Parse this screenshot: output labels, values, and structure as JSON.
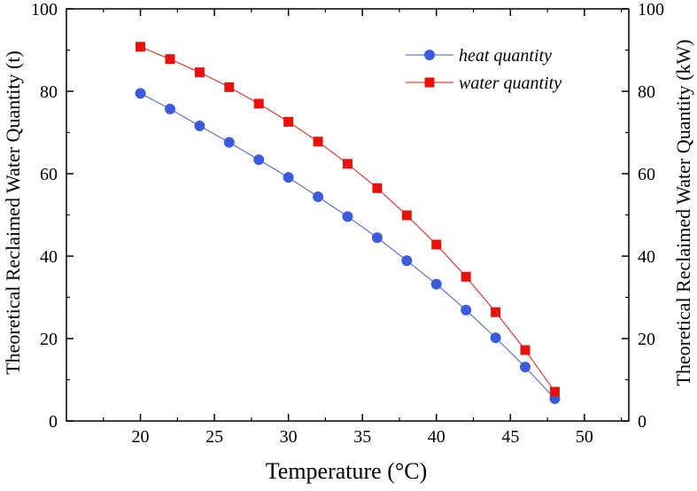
{
  "chart_data": {
    "type": "line",
    "title": "",
    "xlabel": "Temperature (°C)",
    "ylabel": "Theoretical Reclaimed Water Quantity (t)",
    "y2label": "Theoretical Reclaimed Water Quantity (kW)",
    "xlim": [
      15,
      53
    ],
    "ylim": [
      0,
      100
    ],
    "y2lim": [
      0,
      100
    ],
    "x_ticks": [
      20,
      25,
      30,
      35,
      40,
      45,
      50
    ],
    "y_ticks": [
      0,
      20,
      40,
      60,
      80,
      100
    ],
    "grid": false,
    "legend_position": "top-right",
    "x": [
      20,
      22,
      24,
      26,
      28,
      30,
      32,
      34,
      36,
      38,
      40,
      42,
      44,
      46,
      48
    ],
    "series": [
      {
        "name": "heat quantity",
        "color": "#3b5bdb",
        "marker": "circle",
        "values": [
          79.5,
          75.7,
          71.6,
          67.6,
          63.4,
          59.1,
          54.4,
          49.6,
          44.5,
          38.9,
          33.2,
          26.9,
          20.2,
          13.1,
          5.4
        ]
      },
      {
        "name": "water quantity",
        "color": "#e8120c",
        "marker": "square",
        "values": [
          90.8,
          87.8,
          84.6,
          81.0,
          77.0,
          72.6,
          67.8,
          62.4,
          56.5,
          49.9,
          42.8,
          35.0,
          26.4,
          17.2,
          7.1
        ]
      }
    ]
  }
}
